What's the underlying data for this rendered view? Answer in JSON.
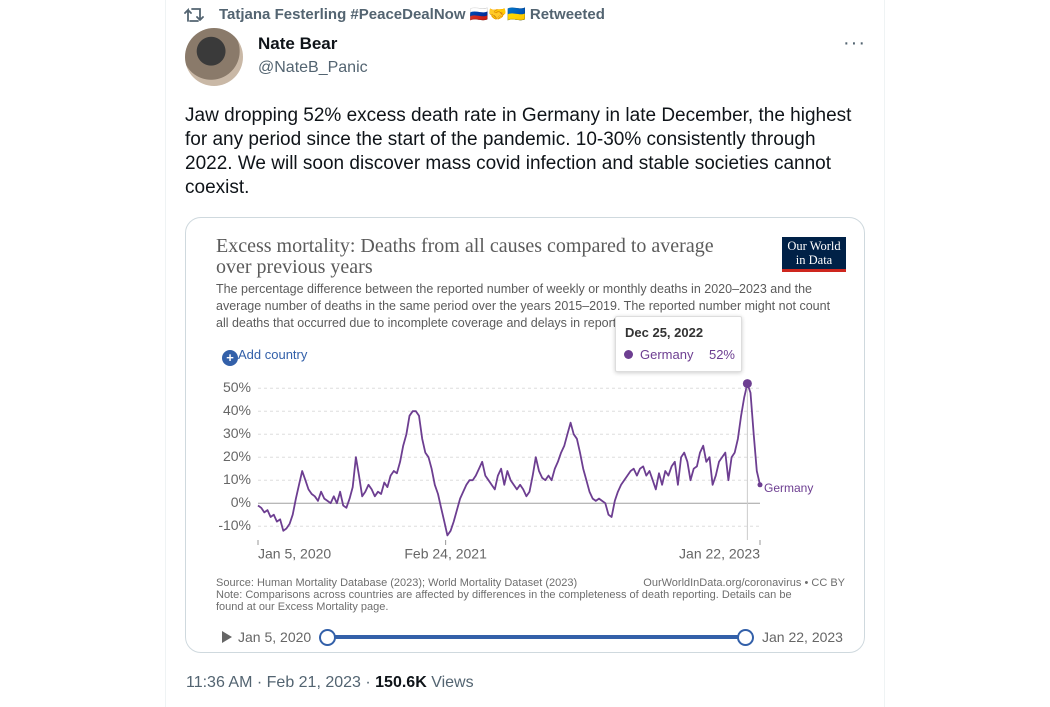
{
  "retweet": {
    "by": "Tatjana Festerling #PeaceDealNow 🇷🇺🤝🇺🇦",
    "label": "Retweeted"
  },
  "tweet": {
    "name": "Nate Bear",
    "handle": "@NateB_Panic",
    "text": "Jaw dropping 52% excess death rate in Germany in late December, the highest for any period since the start of the pandemic. 10-30% consistently through 2022. We will soon discover mass covid infection and stable societies cannot coexist.",
    "time": "11:36 AM",
    "date": "Feb 21, 2023",
    "views": "150.6K",
    "views_label": "Views"
  },
  "chart_data": {
    "type": "line",
    "title": "Excess mortality: Deaths from all causes compared to average over previous years",
    "subtitle": "The percentage difference between the reported number of weekly or monthly deaths in 2020–2023 and the average number of deaths in the same period over the years 2015–2019. The reported number might not count all deaths that occurred due to incomplete coverage and delays in reporting.",
    "logo": "Our World in Data",
    "add_button": "Add country",
    "source": "Source: Human Mortality Database (2023); World Mortality Dataset (2023)",
    "credit": "OurWorldInData.org/coronavirus • CC BY",
    "note": "Note: Comparisons across countries are affected by differences in the completeness of death reporting. Details can be found at our Excess Mortality page.",
    "tooltip": {
      "label": "Dec 25, 2022",
      "value": 52,
      "value_label": "52%"
    },
    "xlim": [
      "2020-01-05",
      "2023-01-22"
    ],
    "xticks": [
      {
        "value": "2020-01-05",
        "label": "Jan 5, 2020"
      },
      {
        "value": "2021-02-24",
        "label": "Feb 24, 2021"
      },
      {
        "value": "2023-01-22",
        "label": "Jan 22, 2023"
      }
    ],
    "ylim": [
      -16,
      54
    ],
    "yticks": [
      {
        "value": -10,
        "label": "-10%"
      },
      {
        "value": 0,
        "label": "0%"
      },
      {
        "value": 10,
        "label": "10%"
      },
      {
        "value": 20,
        "label": "20%"
      },
      {
        "value": 30,
        "label": "30%"
      },
      {
        "value": 40,
        "label": "40%"
      },
      {
        "value": 50,
        "label": "50%"
      }
    ],
    "grid": true,
    "series": [
      {
        "name": "Germany",
        "color": "#6d3e91",
        "x": [
          "2020-01-05",
          "2020-01-12",
          "2020-01-19",
          "2020-01-26",
          "2020-02-02",
          "2020-02-09",
          "2020-02-16",
          "2020-02-23",
          "2020-03-01",
          "2020-03-08",
          "2020-03-15",
          "2020-03-22",
          "2020-03-29",
          "2020-04-05",
          "2020-04-12",
          "2020-04-19",
          "2020-04-26",
          "2020-05-03",
          "2020-05-10",
          "2020-05-17",
          "2020-05-24",
          "2020-05-31",
          "2020-06-07",
          "2020-06-14",
          "2020-06-21",
          "2020-06-28",
          "2020-07-05",
          "2020-07-12",
          "2020-07-19",
          "2020-07-26",
          "2020-08-02",
          "2020-08-09",
          "2020-08-16",
          "2020-08-23",
          "2020-08-30",
          "2020-09-06",
          "2020-09-13",
          "2020-09-20",
          "2020-09-27",
          "2020-10-04",
          "2020-10-11",
          "2020-10-18",
          "2020-10-25",
          "2020-11-01",
          "2020-11-08",
          "2020-11-15",
          "2020-11-22",
          "2020-11-29",
          "2020-12-06",
          "2020-12-13",
          "2020-12-20",
          "2020-12-27",
          "2021-01-03",
          "2021-01-10",
          "2021-01-17",
          "2021-01-24",
          "2021-01-31",
          "2021-02-07",
          "2021-02-14",
          "2021-02-21",
          "2021-02-28",
          "2021-03-07",
          "2021-03-14",
          "2021-03-21",
          "2021-03-28",
          "2021-04-04",
          "2021-04-11",
          "2021-04-18",
          "2021-04-25",
          "2021-05-02",
          "2021-05-09",
          "2021-05-16",
          "2021-05-23",
          "2021-05-30",
          "2021-06-06",
          "2021-06-13",
          "2021-06-20",
          "2021-06-27",
          "2021-07-04",
          "2021-07-11",
          "2021-07-18",
          "2021-07-25",
          "2021-08-01",
          "2021-08-08",
          "2021-08-15",
          "2021-08-22",
          "2021-08-29",
          "2021-09-05",
          "2021-09-12",
          "2021-09-19",
          "2021-09-26",
          "2021-10-03",
          "2021-10-10",
          "2021-10-17",
          "2021-10-24",
          "2021-10-31",
          "2021-11-07",
          "2021-11-14",
          "2021-11-21",
          "2021-11-28",
          "2021-12-05",
          "2021-12-12",
          "2021-12-19",
          "2021-12-26",
          "2022-01-02",
          "2022-01-09",
          "2022-01-16",
          "2022-01-23",
          "2022-01-30",
          "2022-02-06",
          "2022-02-13",
          "2022-02-20",
          "2022-02-27",
          "2022-03-06",
          "2022-03-13",
          "2022-03-20",
          "2022-03-27",
          "2022-04-03",
          "2022-04-10",
          "2022-04-17",
          "2022-04-24",
          "2022-05-01",
          "2022-05-08",
          "2022-05-15",
          "2022-05-22",
          "2022-05-29",
          "2022-06-05",
          "2022-06-12",
          "2022-06-19",
          "2022-06-26",
          "2022-07-03",
          "2022-07-10",
          "2022-07-17",
          "2022-07-24",
          "2022-07-31",
          "2022-08-07",
          "2022-08-14",
          "2022-08-21",
          "2022-08-28",
          "2022-09-04",
          "2022-09-11",
          "2022-09-18",
          "2022-09-25",
          "2022-10-02",
          "2022-10-09",
          "2022-10-16",
          "2022-10-23",
          "2022-10-30",
          "2022-11-06",
          "2022-11-13",
          "2022-11-20",
          "2022-11-27",
          "2022-12-04",
          "2022-12-11",
          "2022-12-18",
          "2022-12-25",
          "2023-01-01",
          "2023-01-08",
          "2023-01-15",
          "2023-01-22"
        ],
        "values": [
          -1,
          -2,
          -4,
          -3,
          -6,
          -5,
          -8,
          -7,
          -12,
          -11,
          -9,
          -5,
          2,
          8,
          14,
          10,
          6,
          4,
          3,
          1,
          5,
          2,
          1,
          0,
          3,
          0,
          5,
          -1,
          -2,
          2,
          7,
          20,
          12,
          3,
          5,
          8,
          6,
          3,
          5,
          4,
          9,
          7,
          12,
          14,
          13,
          18,
          25,
          30,
          38,
          40,
          40,
          38,
          28,
          22,
          20,
          15,
          8,
          4,
          -2,
          -8,
          -14,
          -12,
          -8,
          -3,
          2,
          5,
          8,
          10,
          10,
          12,
          15,
          18,
          12,
          10,
          8,
          6,
          12,
          15,
          8,
          14,
          10,
          8,
          6,
          8,
          6,
          3,
          5,
          12,
          20,
          14,
          11,
          10,
          12,
          10,
          15,
          18,
          22,
          25,
          30,
          35,
          30,
          28,
          22,
          15,
          10,
          5,
          2,
          1,
          2,
          1,
          0,
          -5,
          -6,
          1,
          5,
          8,
          10,
          12,
          14,
          15,
          12,
          15,
          16,
          12,
          14,
          10,
          6,
          13,
          8,
          14,
          12,
          16,
          18,
          8,
          20,
          22,
          18,
          10,
          15,
          16,
          22,
          25,
          18,
          20,
          8,
          12,
          18,
          20,
          22,
          10,
          20,
          22,
          28,
          38,
          46,
          52,
          48,
          30,
          14,
          8
        ]
      }
    ]
  }
}
